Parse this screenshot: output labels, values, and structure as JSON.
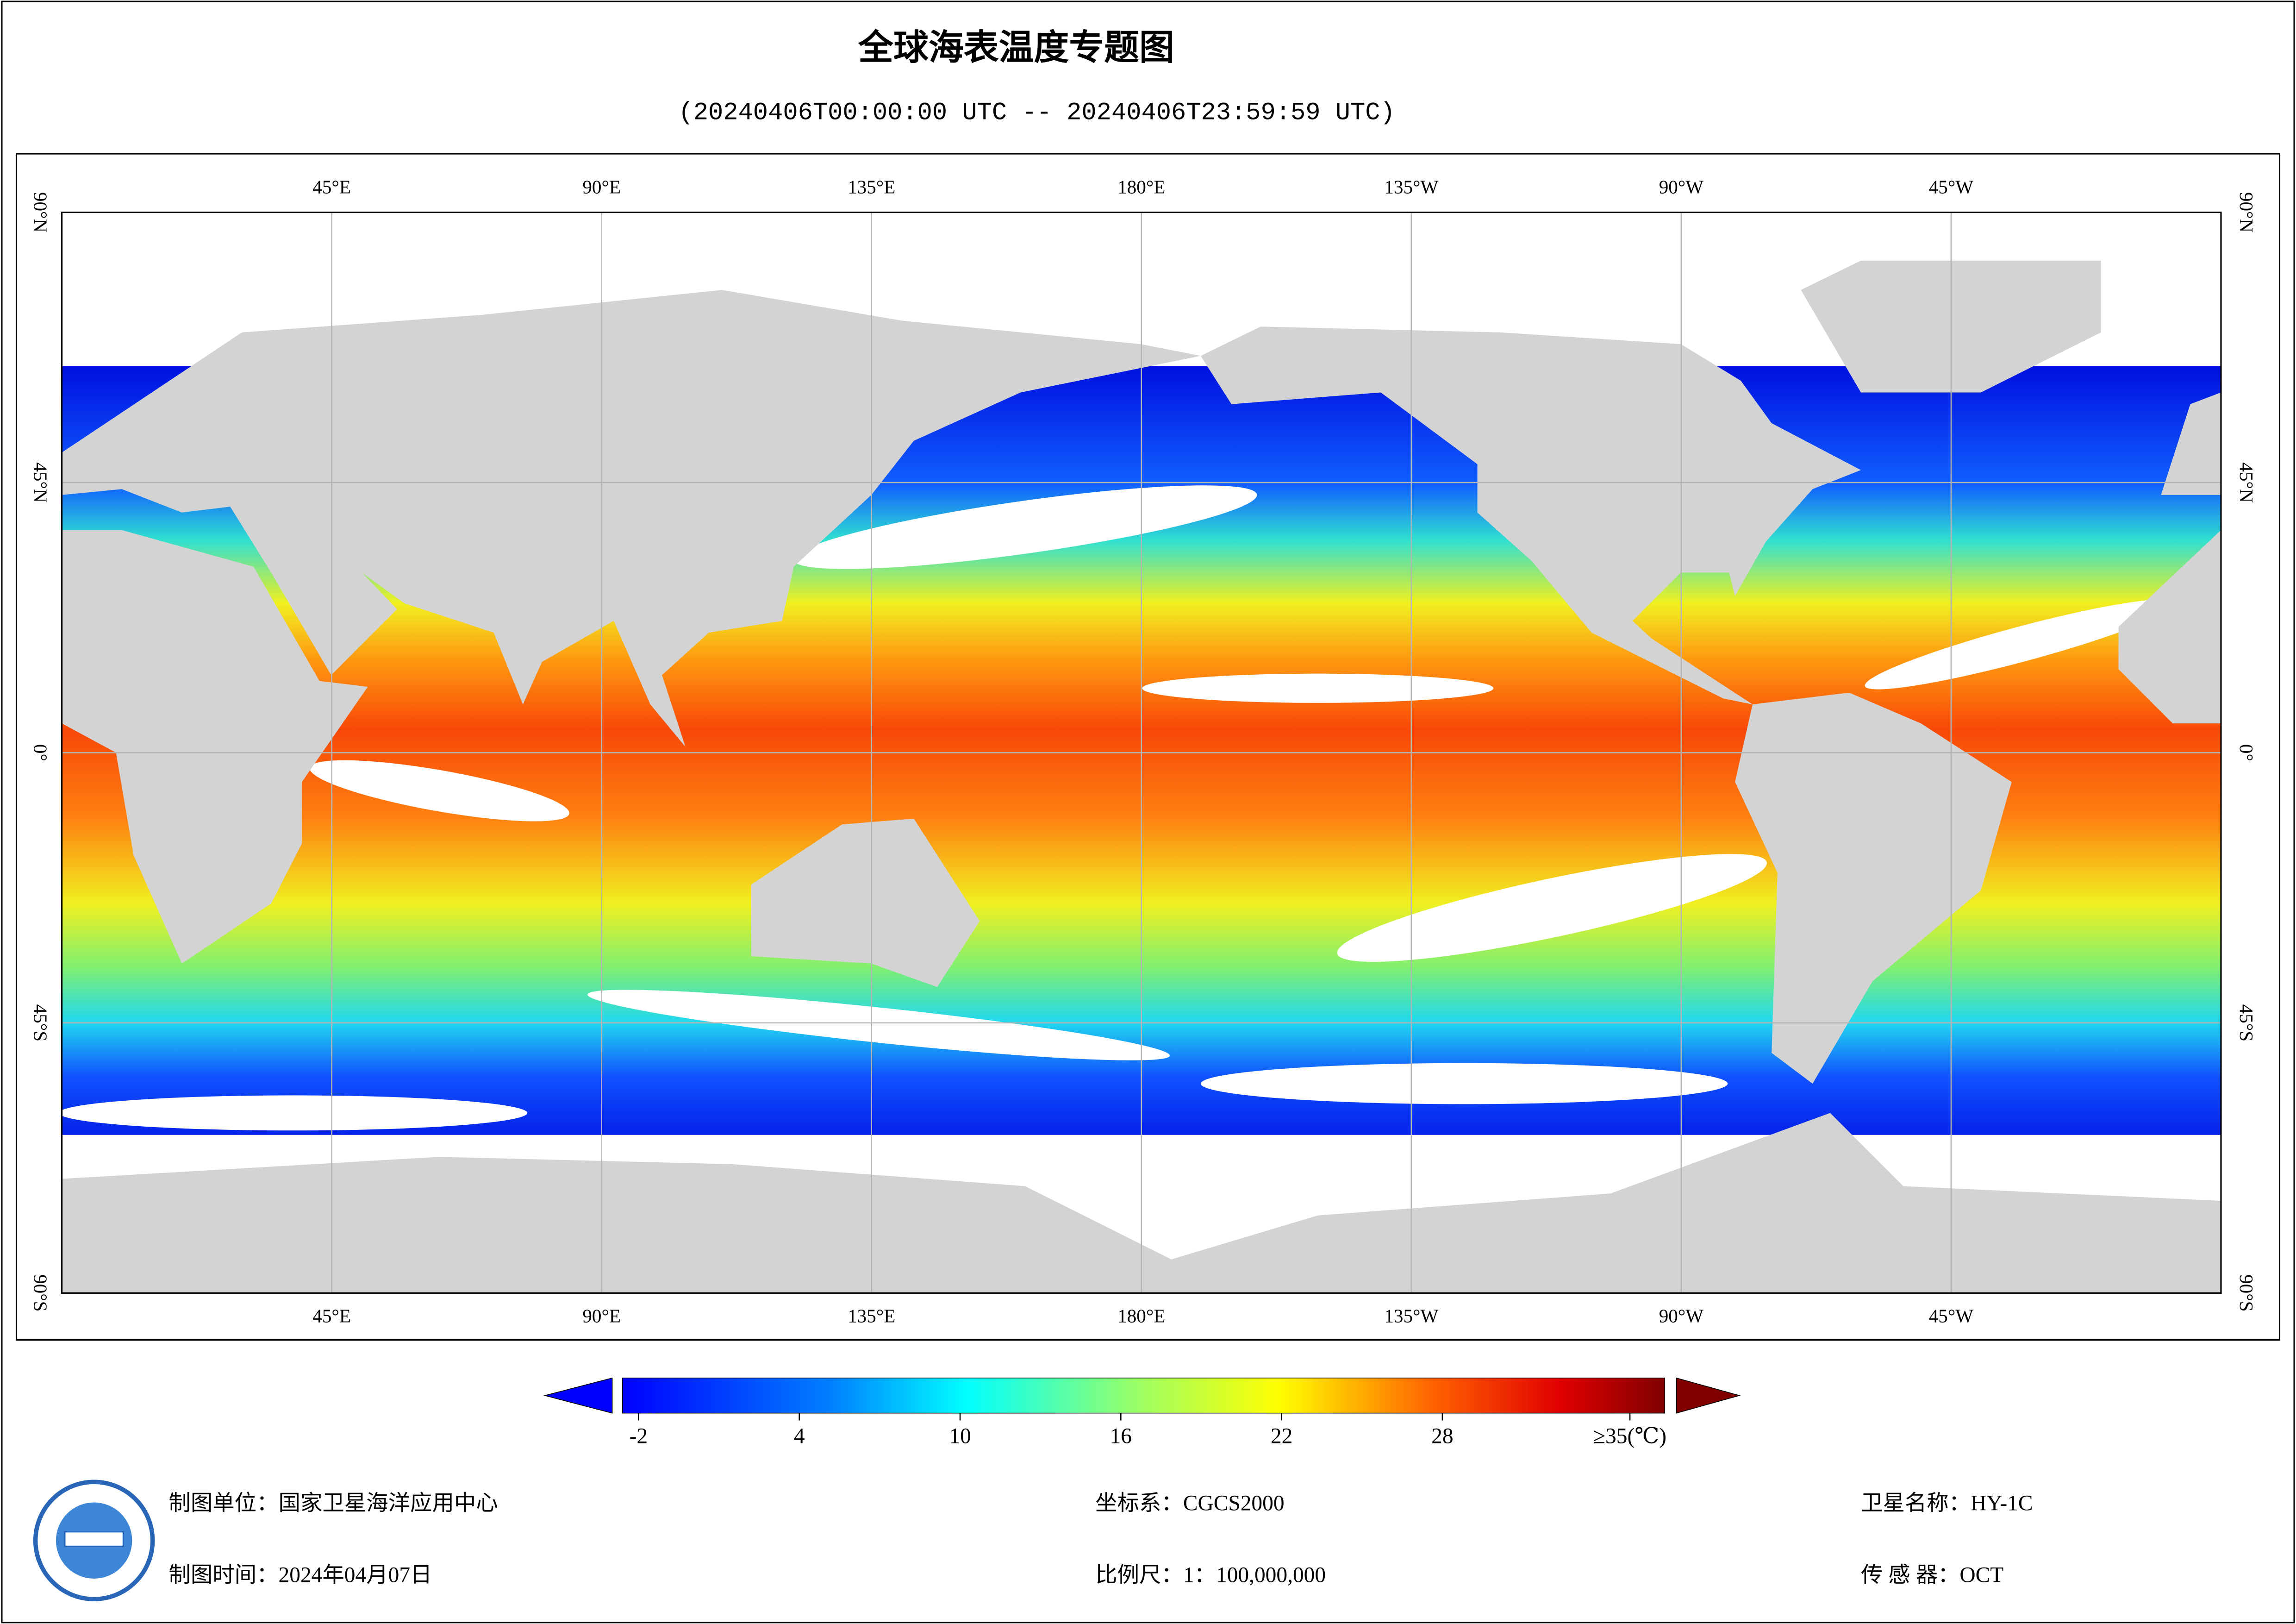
{
  "header": {
    "title": "全球海表温度专题图",
    "subtitle": "(20240406T00:00:00 UTC -- 20240406T23:59:59 UTC)"
  },
  "map": {
    "xlim": [
      0,
      360
    ],
    "ylim": [
      -90,
      90
    ],
    "lon_ticks": [
      {
        "value": 45,
        "label": "45°E"
      },
      {
        "value": 90,
        "label": "90°E"
      },
      {
        "value": 135,
        "label": "135°E"
      },
      {
        "value": 180,
        "label": "180°E"
      },
      {
        "value": 225,
        "label": "135°W"
      },
      {
        "value": 270,
        "label": "90°W"
      },
      {
        "value": 315,
        "label": "45°W"
      }
    ],
    "lat_ticks": [
      {
        "value": 90,
        "label": "90°N"
      },
      {
        "value": 45,
        "label": "45°N"
      },
      {
        "value": 0,
        "label": "0°"
      },
      {
        "value": -45,
        "label": "45°S"
      },
      {
        "value": -90,
        "label": "90°S"
      }
    ],
    "grid": true
  },
  "colorbar": {
    "lim": [
      -2.6,
      36.3
    ],
    "ticks": [
      -2,
      4,
      10,
      16,
      22,
      28,
      {
        "value": 35,
        "label": "≥35(℃)"
      }
    ]
  },
  "footer": {
    "left": [
      "制图单位：国家卫星海洋应用中心",
      "制图时间：2024年04月07日"
    ],
    "middle": [
      "坐标系：CGCS2000",
      "比例尺：1：100,000,000"
    ],
    "right": [
      "卫星名称：HY-1C",
      "传 感 器：OCT"
    ]
  }
}
